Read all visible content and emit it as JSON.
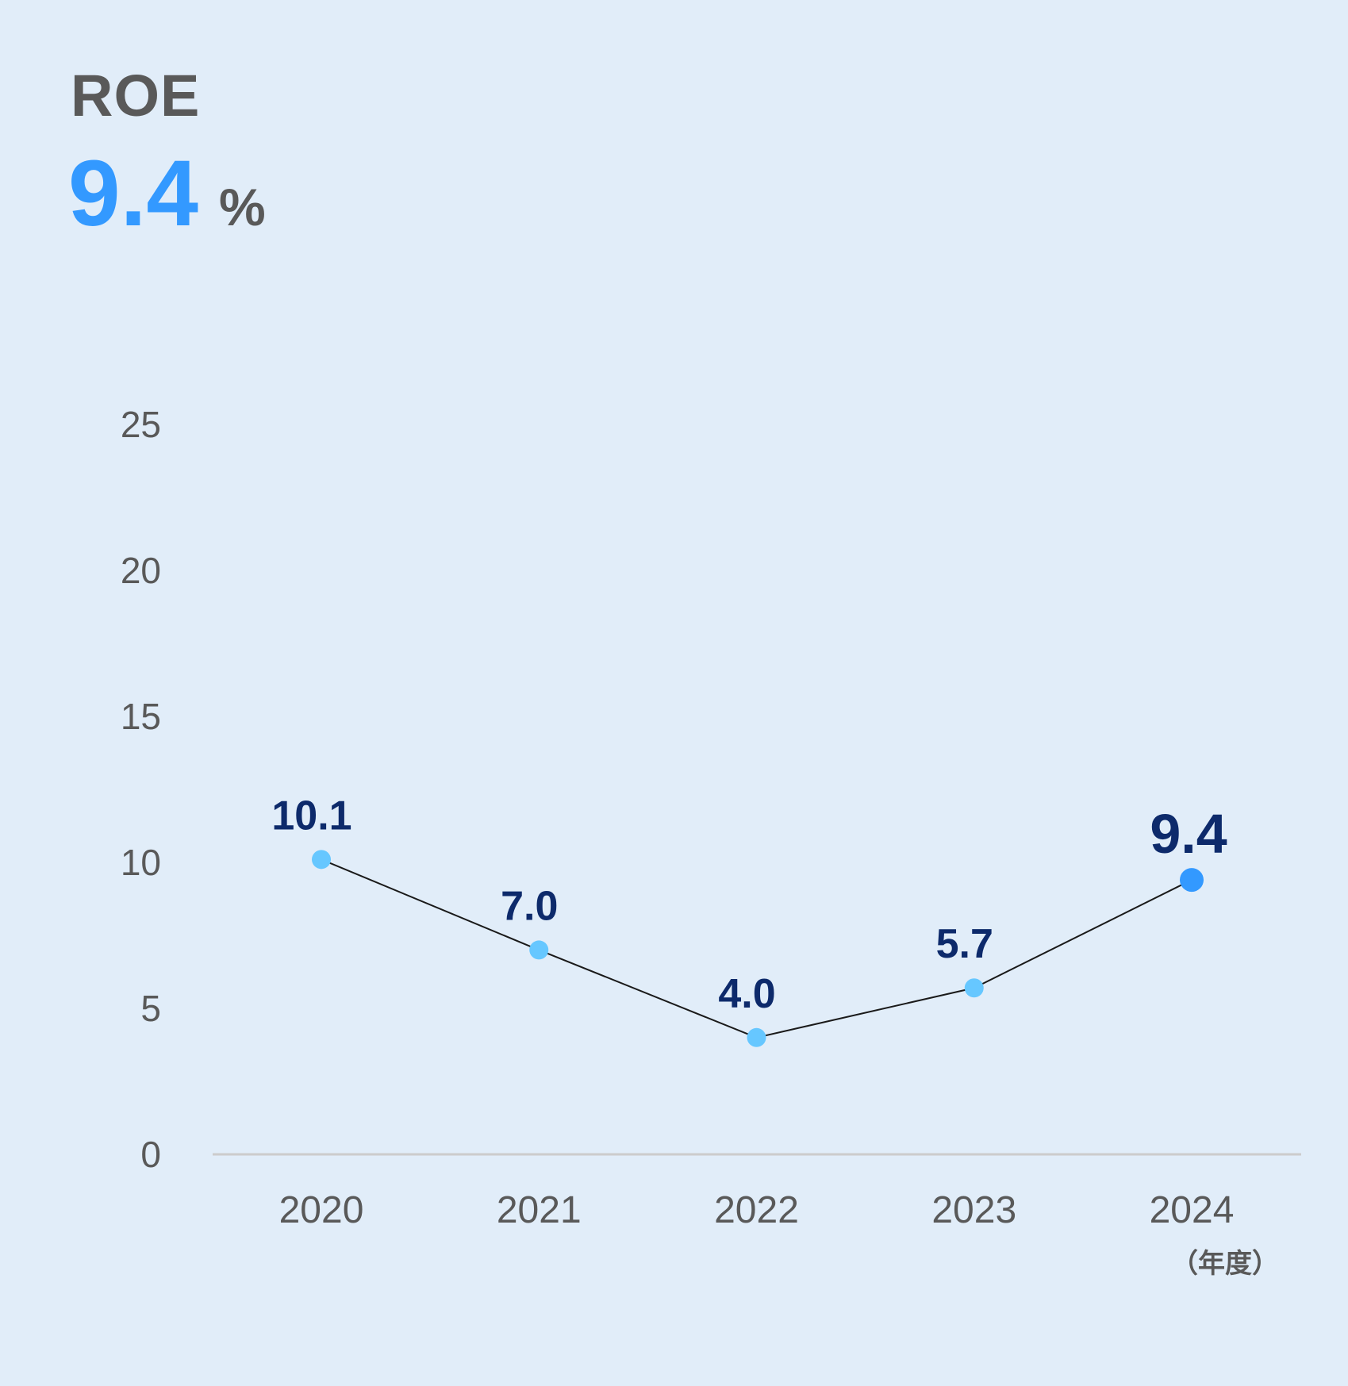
{
  "metric": {
    "title": "ROE",
    "value": "9.4",
    "unit": "%"
  },
  "colors": {
    "background": "#e1edf9",
    "accent": "#3399ff",
    "point": "#66c7ff",
    "highlight_point": "#3399ff",
    "label": "#0d2a6b",
    "text": "#595959",
    "line": "#1a1a1a",
    "axis": "#cccccc"
  },
  "chart_data": {
    "type": "line",
    "categories": [
      "2020",
      "2021",
      "2022",
      "2023",
      "2024"
    ],
    "values": [
      10.1,
      7.0,
      4.0,
      5.7,
      9.4
    ],
    "value_labels": [
      "10.1",
      "7.0",
      "4.0",
      "5.7",
      "9.4"
    ],
    "highlight_index": 4,
    "y_ticks": [
      0,
      5,
      10,
      15,
      20,
      25
    ],
    "ylim": [
      0,
      25
    ],
    "x_unit_note": "（年度）",
    "grid": false
  }
}
